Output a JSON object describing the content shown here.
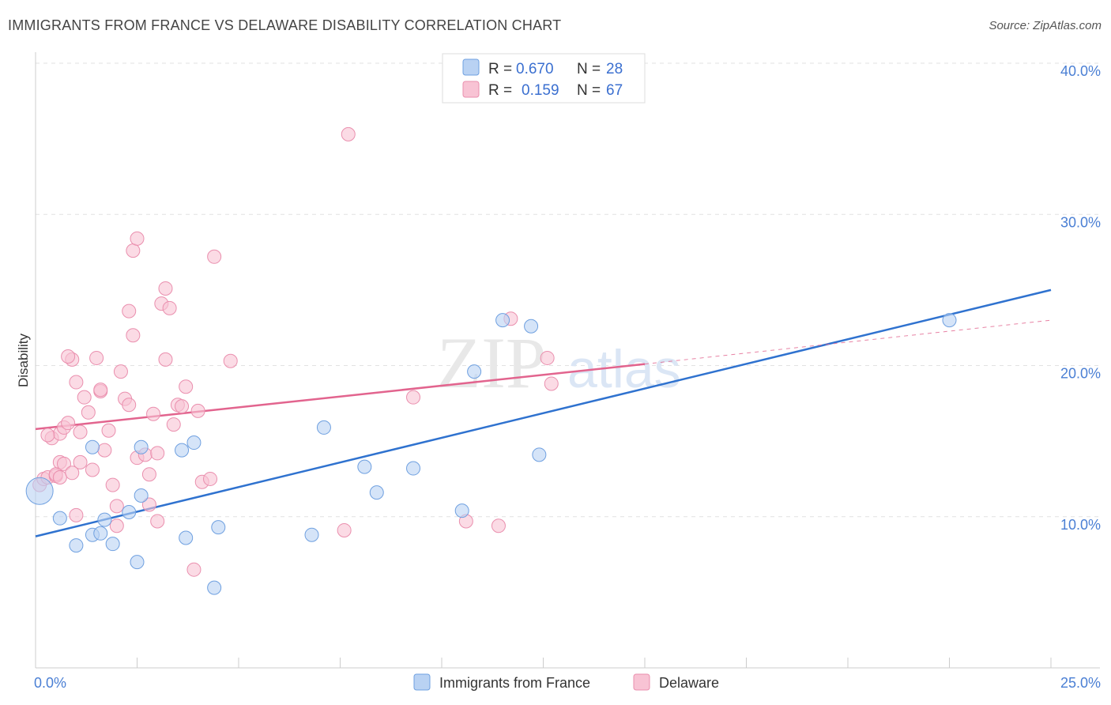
{
  "title": "IMMIGRANTS FROM FRANCE VS DELAWARE DISABILITY CORRELATION CHART",
  "source": "Source: ZipAtlas.com",
  "watermark": {
    "part1": "ZIP",
    "part2": "atlas"
  },
  "chart_data": {
    "type": "scatter",
    "xlabel": "",
    "ylabel": "Disability",
    "xlim": [
      0,
      25
    ],
    "ylim": [
      0,
      40
    ],
    "x_tick_labels": [
      {
        "value": 0,
        "label": "0.0%"
      },
      {
        "value": 25,
        "label": "25.0%"
      }
    ],
    "y_tick_labels": [
      {
        "value": 10,
        "label": "10.0%"
      },
      {
        "value": 20,
        "label": "20.0%"
      },
      {
        "value": 30,
        "label": "30.0%"
      },
      {
        "value": 40,
        "label": "40.0%"
      }
    ],
    "grid": true,
    "legend_position": "top-center",
    "stats": [
      {
        "r_label": "R =",
        "r_value": "0.670",
        "n_label": "N =",
        "n_value": "28"
      },
      {
        "r_label": "R =",
        "r_value": "0.159",
        "n_label": "N =",
        "n_value": "67"
      }
    ],
    "series": [
      {
        "name": "Immigrants from France",
        "color": "#6fa0e0",
        "fill": "#b9d2f3",
        "line_color": "#2f72cf",
        "trend": {
          "x": [
            0,
            25
          ],
          "y": [
            8.7,
            25.0
          ]
        },
        "points": [
          [
            0.1,
            11.7
          ],
          [
            1.0,
            8.1
          ],
          [
            0.6,
            9.9
          ],
          [
            1.4,
            8.8
          ],
          [
            1.7,
            9.8
          ],
          [
            1.9,
            8.2
          ],
          [
            1.6,
            8.9
          ],
          [
            2.5,
            7.0
          ],
          [
            2.6,
            11.4
          ],
          [
            3.7,
            8.6
          ],
          [
            2.3,
            10.3
          ],
          [
            2.6,
            14.6
          ],
          [
            4.4,
            5.3
          ],
          [
            4.5,
            9.3
          ],
          [
            1.4,
            14.6
          ],
          [
            3.6,
            14.4
          ],
          [
            3.9,
            14.9
          ],
          [
            6.8,
            8.8
          ],
          [
            7.1,
            15.9
          ],
          [
            8.1,
            13.3
          ],
          [
            8.4,
            11.6
          ],
          [
            9.3,
            13.2
          ],
          [
            10.5,
            10.4
          ],
          [
            10.8,
            19.6
          ],
          [
            11.5,
            23.0
          ],
          [
            12.2,
            22.6
          ],
          [
            12.4,
            14.1
          ],
          [
            22.5,
            23.0
          ]
        ],
        "sizes": {
          "0": 34
        }
      },
      {
        "name": "Delaware",
        "color": "#ea8fae",
        "fill": "#f8c3d4",
        "line_color": "#e2648e",
        "trend": {
          "x": [
            0,
            15
          ],
          "y": [
            15.8,
            20.1
          ]
        },
        "trend_dashed": {
          "x": [
            15,
            25
          ],
          "y": [
            20.1,
            23.0
          ]
        },
        "points": [
          [
            0.1,
            12.1
          ],
          [
            0.2,
            12.5
          ],
          [
            0.3,
            12.6
          ],
          [
            0.5,
            12.7
          ],
          [
            0.6,
            13.6
          ],
          [
            0.4,
            15.2
          ],
          [
            0.6,
            15.5
          ],
          [
            0.7,
            15.9
          ],
          [
            0.8,
            16.2
          ],
          [
            0.9,
            20.4
          ],
          [
            0.8,
            20.6
          ],
          [
            1.0,
            18.9
          ],
          [
            1.1,
            15.6
          ],
          [
            1.2,
            17.9
          ],
          [
            1.3,
            16.9
          ],
          [
            1.4,
            13.1
          ],
          [
            1.5,
            20.5
          ],
          [
            1.6,
            18.3
          ],
          [
            1.6,
            18.4
          ],
          [
            1.7,
            14.4
          ],
          [
            1.8,
            15.7
          ],
          [
            1.9,
            12.1
          ],
          [
            2.0,
            10.7
          ],
          [
            2.0,
            9.4
          ],
          [
            2.1,
            19.6
          ],
          [
            2.2,
            17.8
          ],
          [
            2.3,
            17.4
          ],
          [
            2.3,
            23.6
          ],
          [
            2.4,
            22.0
          ],
          [
            2.5,
            13.9
          ],
          [
            2.4,
            27.6
          ],
          [
            2.5,
            28.4
          ],
          [
            2.7,
            14.1
          ],
          [
            2.8,
            12.8
          ],
          [
            2.8,
            10.8
          ],
          [
            2.9,
            16.8
          ],
          [
            3.0,
            14.2
          ],
          [
            3.0,
            9.7
          ],
          [
            3.1,
            24.1
          ],
          [
            3.2,
            25.1
          ],
          [
            3.2,
            20.4
          ],
          [
            3.3,
            23.8
          ],
          [
            3.4,
            16.1
          ],
          [
            3.5,
            17.4
          ],
          [
            3.7,
            18.6
          ],
          [
            3.6,
            17.3
          ],
          [
            3.9,
            6.5
          ],
          [
            4.0,
            17.0
          ],
          [
            4.1,
            12.3
          ],
          [
            4.3,
            12.5
          ],
          [
            4.4,
            27.2
          ],
          [
            4.8,
            20.3
          ],
          [
            0.5,
            12.8
          ],
          [
            0.7,
            13.5
          ],
          [
            0.6,
            12.6
          ],
          [
            1.0,
            10.1
          ],
          [
            1.1,
            13.6
          ],
          [
            0.9,
            12.9
          ],
          [
            7.6,
            9.1
          ],
          [
            7.7,
            35.3
          ],
          [
            9.3,
            17.9
          ],
          [
            10.6,
            9.7
          ],
          [
            11.7,
            23.1
          ],
          [
            11.4,
            9.4
          ],
          [
            12.6,
            20.5
          ],
          [
            12.7,
            18.8
          ],
          [
            0.3,
            15.4
          ]
        ]
      }
    ]
  }
}
